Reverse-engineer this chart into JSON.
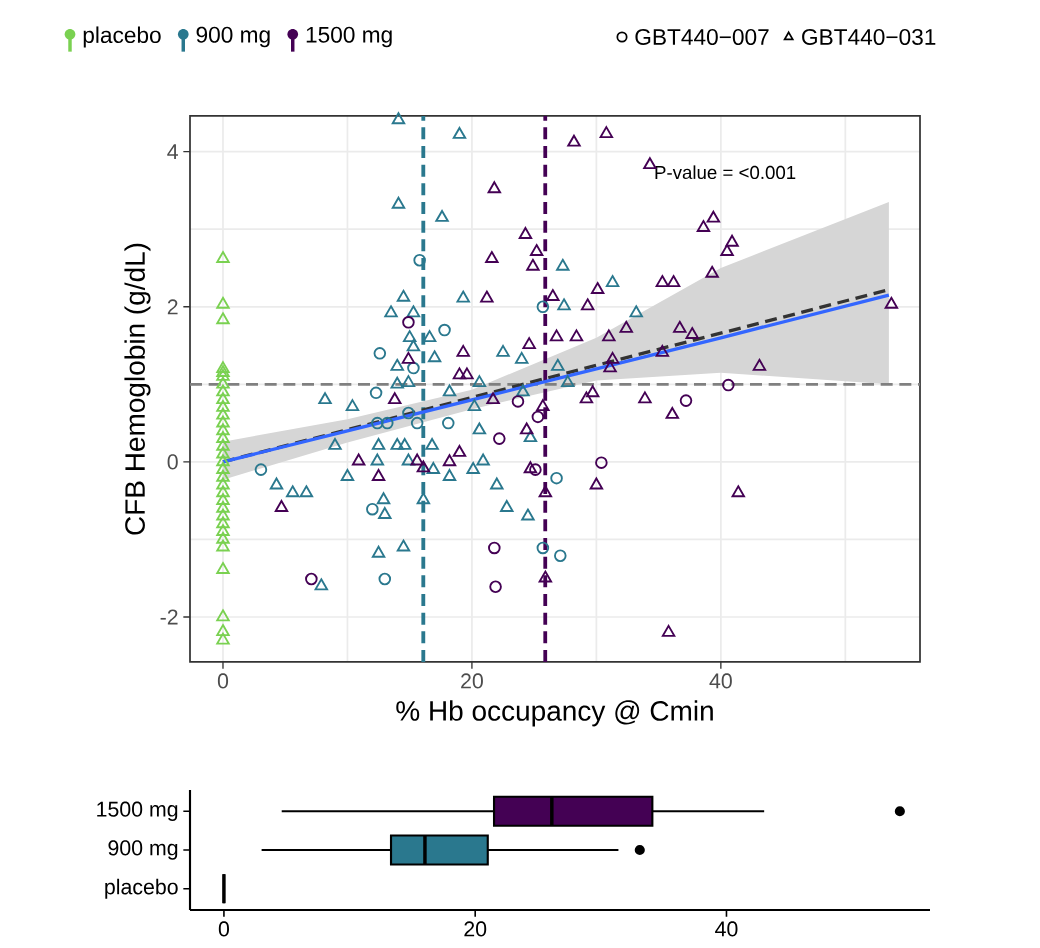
{
  "chart_data": [
    {
      "type": "scatter",
      "xlabel": "% Hb occupancy @ Cmin",
      "ylabel": "CFB Hemoglobin (g/dL)",
      "xlim": [
        -2.65,
        56
      ],
      "ylim": [
        -2.58,
        4.46
      ],
      "xticks": [
        0,
        {
          "value": 10,
          "label": null
        },
        20,
        {
          "value": 30,
          "label": null
        },
        40,
        {
          "value": 50,
          "label": null
        }
      ],
      "yticks": [
        -2,
        {
          "value": -1,
          "label": null
        },
        0,
        {
          "value": 1,
          "label": null
        },
        2,
        {
          "value": 3,
          "label": null
        },
        4
      ],
      "grid": true,
      "legend": "top",
      "annotations": [
        "P-value = <0.001",
        "GBT440−007",
        "GBT440−031"
      ],
      "ref_lines": [
        {
          "axis": "y",
          "value": 1,
          "color": "#808080",
          "line_style": "dashed"
        },
        {
          "axis": "x",
          "value": 16.1,
          "color": "#2A788E",
          "line_style": "dashed"
        },
        {
          "axis": "x",
          "value": 25.9,
          "color": "#440154",
          "line_style": "dashed"
        }
      ],
      "series": [
        {
          "name": "placebo",
          "color": "#7AD151",
          "marker": "triangle",
          "x": [
            0,
            0,
            0,
            0,
            0,
            0,
            0,
            0,
            0,
            0,
            0,
            0,
            0,
            0,
            0,
            0,
            0,
            0,
            0,
            0,
            0,
            0,
            0,
            0,
            0,
            0,
            0,
            0,
            0,
            0,
            0,
            0
          ],
          "values": [
            2.62,
            2.03,
            1.83,
            1.2,
            1.15,
            1.1,
            1.0,
            0.9,
            0.8,
            0.7,
            0.6,
            0.5,
            0.4,
            0.3,
            0.2,
            0.1,
            0.0,
            -0.1,
            -0.2,
            -0.3,
            -0.4,
            -0.5,
            -0.6,
            -0.7,
            -0.8,
            -0.9,
            -1.0,
            -1.1,
            -1.39,
            -2.0,
            -2.19,
            -2.3
          ]
        },
        {
          "color": "#2A788E",
          "marker": "circle",
          "x": [
            15.8,
            12.6,
            15.3,
            25.7,
            17.8,
            18.1,
            26.8,
            25.7,
            27.1,
            3.05,
            12.3,
            12.4,
            13.2,
            15.6,
            14.9,
            12.0,
            13.0
          ],
          "values": [
            2.6,
            1.4,
            1.21,
            2.0,
            1.7,
            0.5,
            -0.21,
            -1.11,
            -1.21,
            -0.1,
            0.89,
            0.5,
            0.5,
            0.5,
            0.63,
            -0.61,
            -1.51
          ]
        },
        {
          "name": "900 mg",
          "color": "#2A788E",
          "marker": "triangle",
          "x": [
            14.1,
            14.1,
            17.6,
            14.5,
            13.5,
            15.3,
            15.0,
            16.6,
            15.3,
            14.0,
            17.0,
            19.0,
            27.3,
            31.3,
            19.3,
            27.4,
            33.2,
            22.5,
            24.0,
            26.9,
            20.6,
            18.2,
            24.1,
            27.7,
            20.2,
            20.6,
            24.7,
            16.8,
            18.2,
            16.9,
            20.1,
            20.9,
            22.0,
            22.8,
            24.5,
            16.1,
            4.3,
            5.6,
            6.7,
            8.2,
            10.4,
            9.0,
            12.4,
            10.0,
            12.5,
            14.0,
            14.6,
            14.9,
            12.9,
            13.0,
            12.5,
            14.5,
            7.9,
            14.0,
            14.9
          ],
          "values": [
            4.41,
            3.32,
            3.15,
            2.12,
            1.92,
            1.92,
            1.6,
            1.6,
            1.48,
            1.23,
            1.34,
            4.22,
            2.52,
            2.31,
            2.11,
            2.01,
            1.92,
            1.41,
            1.32,
            1.23,
            1.02,
            0.9,
            0.9,
            1.02,
            0.71,
            0.41,
            0.31,
            0.21,
            -0.19,
            -0.1,
            -0.1,
            0.01,
            -0.3,
            -0.59,
            -0.7,
            -0.49,
            -0.3,
            -0.4,
            -0.4,
            0.8,
            0.71,
            0.21,
            0.01,
            -0.19,
            0.21,
            0.21,
            0.21,
            0.01,
            -0.49,
            -0.68,
            -1.18,
            -1.1,
            -1.6,
            1.0,
            1.02
          ]
        },
        {
          "color": "#440154",
          "marker": "circle",
          "x": [
            14.9,
            40.6,
            23.7,
            37.2,
            25.3,
            22.2,
            25.1,
            30.4,
            21.8,
            21.9,
            7.1
          ],
          "values": [
            1.8,
            0.99,
            0.78,
            0.79,
            0.58,
            0.3,
            -0.1,
            -0.01,
            -1.11,
            -1.61,
            -1.51
          ]
        },
        {
          "name": "1500 mg",
          "color": "#440154",
          "marker": "triangle",
          "x": [
            14.9,
            28.2,
            30.8,
            34.3,
            21.8,
            39.4,
            38.6,
            24.3,
            40.9,
            40.5,
            25.2,
            21.6,
            24.9,
            39.3,
            35.3,
            36.2,
            30.1,
            21.2,
            26.5,
            29.3,
            32.4,
            31.0,
            26.8,
            28.4,
            36.7,
            37.7,
            19.3,
            24.6,
            35.3,
            31.3,
            31.1,
            43.1,
            53.7,
            19.0,
            19.6,
            21.7,
            25.7,
            29.2,
            29.7,
            33.9,
            36.1,
            24.4,
            19.0,
            18.2,
            24.7,
            30.0,
            25.9,
            41.4,
            25.9,
            35.8,
            16.1,
            4.7,
            10.9,
            12.5,
            13.8,
            15.6
          ],
          "values": [
            1.32,
            4.12,
            4.23,
            3.83,
            3.52,
            3.14,
            3.02,
            2.93,
            2.83,
            2.71,
            2.71,
            2.62,
            2.52,
            2.43,
            2.31,
            2.31,
            2.22,
            2.11,
            2.13,
            2.01,
            1.72,
            1.61,
            1.61,
            1.61,
            1.72,
            1.64,
            1.41,
            1.51,
            1.41,
            1.32,
            1.21,
            1.23,
            2.03,
            1.12,
            1.12,
            0.8,
            0.71,
            0.81,
            0.89,
            0.81,
            0.61,
            0.41,
            0.12,
            0.0,
            -0.09,
            -0.3,
            -0.4,
            -0.4,
            -1.5,
            -2.2,
            -0.08,
            -0.59,
            0.01,
            -0.19,
            0.8,
            0.01
          ]
        },
        {
          "type": "line",
          "color": "#333333",
          "line_style": "dashed",
          "x": [
            0,
            53.5
          ],
          "values": [
            0,
            2.22
          ]
        },
        {
          "type": "line",
          "color": "#3366FF",
          "line_style": "solid",
          "x": [
            0,
            10,
            20,
            30,
            40,
            53.5
          ],
          "values": [
            0,
            0.4,
            0.8,
            1.2,
            1.6,
            2.15
          ],
          "lower": [
            -0.23,
            0.25,
            0.68,
            1.05,
            1.15,
            1.0
          ],
          "upper": [
            0.26,
            0.55,
            0.93,
            1.6,
            2.5,
            3.35
          ]
        }
      ]
    },
    {
      "type": "box",
      "orientation": "horizontal",
      "categories": [
        "1500 mg",
        "900 mg",
        "placebo"
      ],
      "colors": [
        "#440154",
        "#2A788E",
        "#000000"
      ],
      "xlim": [
        -2.7,
        56.2
      ],
      "xticks": [
        0,
        20,
        40
      ],
      "boxes": [
        {
          "low": 4.6,
          "q1": 21.5,
          "median": 26.1,
          "q3": 34.1,
          "high": 43.0,
          "outliers": [
            53.8
          ]
        },
        {
          "low": 3.0,
          "q1": 13.3,
          "median": 16.0,
          "q3": 21.0,
          "high": 31.4,
          "outliers": [
            33.1
          ]
        },
        {
          "low": 0,
          "q1": 0,
          "median": 0,
          "q3": 0,
          "high": 0
        }
      ]
    }
  ]
}
